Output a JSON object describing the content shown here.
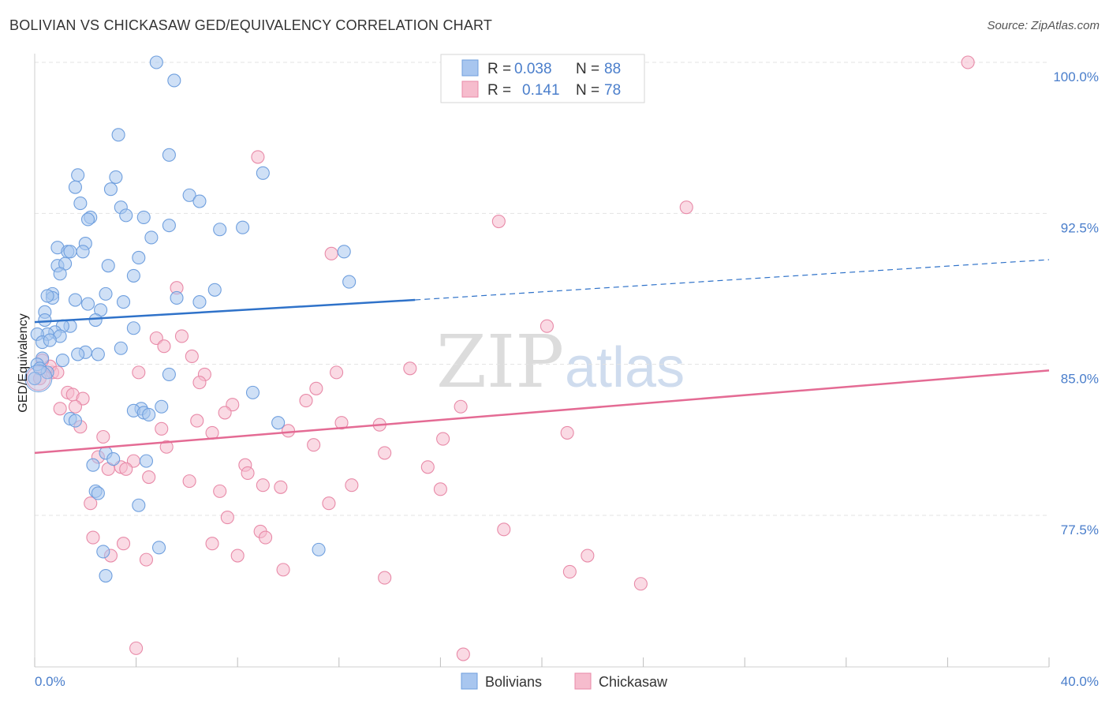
{
  "title": "BOLIVIAN VS CHICKASAW GED/EQUIVALENCY CORRELATION CHART",
  "source": "Source: ZipAtlas.com",
  "watermark": {
    "zip": "ZIP",
    "atlas": "atlas"
  },
  "colors": {
    "blue_fill": "#a8c6ef",
    "blue_stroke": "#6f9fde",
    "blue_line": "#2f72c9",
    "pink_fill": "#f6bccd",
    "pink_stroke": "#e88aa8",
    "pink_line": "#e46b94",
    "tick_text": "#4a7ecb",
    "grid": "#e3e3e3"
  },
  "legend_top": {
    "rows": [
      {
        "r_label": "R =",
        "r_value": "0.038",
        "n_label": "N =",
        "n_value": "88"
      },
      {
        "r_label": "R =",
        "r_value": "0.141",
        "n_label": "N =",
        "n_value": "78"
      }
    ]
  },
  "chart_data": {
    "type": "scatter",
    "title": "BOLIVIAN VS CHICKASAW GED/EQUIVALENCY CORRELATION CHART",
    "xlabel": "",
    "ylabel": "GED/Equivalency",
    "xlim": [
      0,
      40
    ],
    "ylim": [
      70.8,
      100.7
    ],
    "x_tick_labels": [
      "0.0%",
      "40.0%"
    ],
    "y_ticks": [
      77.5,
      85.0,
      92.5,
      100.0
    ],
    "y_tick_labels": [
      "77.5%",
      "85.0%",
      "92.5%",
      "100.0%"
    ],
    "grid": "horizontal dashed",
    "legend_placement": "top-center and bottom-center",
    "series": [
      {
        "name": "Bolivians",
        "r": 0.038,
        "n": 88,
        "trend": {
          "x": [
            0,
            15
          ],
          "y": [
            87.1,
            88.2
          ],
          "dashed_extension_to": [
            40,
            90.2
          ]
        },
        "points": [
          [
            4.8,
            100.0
          ],
          [
            5.5,
            99.1
          ],
          [
            3.3,
            96.4
          ],
          [
            5.3,
            95.4
          ],
          [
            1.7,
            94.4
          ],
          [
            3.2,
            94.3
          ],
          [
            9.0,
            94.5
          ],
          [
            1.6,
            93.8
          ],
          [
            3.0,
            93.7
          ],
          [
            6.1,
            93.4
          ],
          [
            6.5,
            93.1
          ],
          [
            1.8,
            93.0
          ],
          [
            3.4,
            92.8
          ],
          [
            2.2,
            92.3
          ],
          [
            3.6,
            92.4
          ],
          [
            4.3,
            92.3
          ],
          [
            2.1,
            92.2
          ],
          [
            7.3,
            91.7
          ],
          [
            8.2,
            91.8
          ],
          [
            5.3,
            91.9
          ],
          [
            4.6,
            91.3
          ],
          [
            2.0,
            91.0
          ],
          [
            0.9,
            90.8
          ],
          [
            1.3,
            90.6
          ],
          [
            1.4,
            90.6
          ],
          [
            1.9,
            90.6
          ],
          [
            4.1,
            90.3
          ],
          [
            12.2,
            90.6
          ],
          [
            2.9,
            89.9
          ],
          [
            0.9,
            89.9
          ],
          [
            1.2,
            90.0
          ],
          [
            1.0,
            89.5
          ],
          [
            3.9,
            89.4
          ],
          [
            12.4,
            89.1
          ],
          [
            7.1,
            88.7
          ],
          [
            2.8,
            88.5
          ],
          [
            0.7,
            88.5
          ],
          [
            0.7,
            88.3
          ],
          [
            0.5,
            88.4
          ],
          [
            1.6,
            88.2
          ],
          [
            5.6,
            88.3
          ],
          [
            6.5,
            88.1
          ],
          [
            3.5,
            88.1
          ],
          [
            2.1,
            88.0
          ],
          [
            2.6,
            87.7
          ],
          [
            0.4,
            87.6
          ],
          [
            0.4,
            87.2
          ],
          [
            2.4,
            87.2
          ],
          [
            1.4,
            86.9
          ],
          [
            1.1,
            86.9
          ],
          [
            3.9,
            86.8
          ],
          [
            0.8,
            86.6
          ],
          [
            0.5,
            86.5
          ],
          [
            1.0,
            86.4
          ],
          [
            0.1,
            86.5
          ],
          [
            0.3,
            86.1
          ],
          [
            0.6,
            86.2
          ],
          [
            3.4,
            85.8
          ],
          [
            2.0,
            85.6
          ],
          [
            2.5,
            85.5
          ],
          [
            1.7,
            85.5
          ],
          [
            1.1,
            85.2
          ],
          [
            0.3,
            85.3
          ],
          [
            0.1,
            85.0
          ],
          [
            0.5,
            84.6
          ],
          [
            5.3,
            84.5
          ],
          [
            8.6,
            83.6
          ],
          [
            5.0,
            82.9
          ],
          [
            4.2,
            82.8
          ],
          [
            3.9,
            82.7
          ],
          [
            4.3,
            82.6
          ],
          [
            4.5,
            82.5
          ],
          [
            1.4,
            82.3
          ],
          [
            1.6,
            82.2
          ],
          [
            9.6,
            82.1
          ],
          [
            2.8,
            80.6
          ],
          [
            3.1,
            80.3
          ],
          [
            4.4,
            80.2
          ],
          [
            2.3,
            80.0
          ],
          [
            2.4,
            78.7
          ],
          [
            2.5,
            78.6
          ],
          [
            4.1,
            78.0
          ],
          [
            4.9,
            75.9
          ],
          [
            11.2,
            75.8
          ],
          [
            2.7,
            75.7
          ],
          [
            2.8,
            74.5
          ],
          [
            0.2,
            84.8
          ],
          [
            0.0,
            84.3
          ]
        ]
      },
      {
        "name": "Chickasaw",
        "r": 0.141,
        "n": 78,
        "trend": {
          "x": [
            0,
            40
          ],
          "y": [
            80.6,
            84.7
          ]
        },
        "points": [
          [
            36.8,
            100.0
          ],
          [
            8.8,
            95.3
          ],
          [
            25.7,
            92.8
          ],
          [
            18.3,
            92.1
          ],
          [
            11.7,
            90.5
          ],
          [
            5.6,
            88.8
          ],
          [
            20.2,
            86.9
          ],
          [
            5.8,
            86.4
          ],
          [
            4.8,
            86.3
          ],
          [
            5.1,
            85.9
          ],
          [
            6.2,
            85.4
          ],
          [
            14.8,
            84.8
          ],
          [
            11.9,
            84.6
          ],
          [
            6.7,
            84.5
          ],
          [
            4.1,
            84.6
          ],
          [
            0.7,
            84.6
          ],
          [
            6.5,
            84.1
          ],
          [
            11.1,
            83.8
          ],
          [
            1.3,
            83.6
          ],
          [
            1.5,
            83.5
          ],
          [
            1.9,
            83.3
          ],
          [
            10.7,
            83.2
          ],
          [
            7.8,
            83.0
          ],
          [
            16.8,
            82.9
          ],
          [
            1.6,
            82.9
          ],
          [
            1.0,
            82.8
          ],
          [
            7.5,
            82.6
          ],
          [
            6.4,
            82.2
          ],
          [
            12.1,
            82.1
          ],
          [
            13.6,
            82.0
          ],
          [
            1.8,
            81.9
          ],
          [
            5.0,
            81.8
          ],
          [
            7.0,
            81.6
          ],
          [
            10.0,
            81.7
          ],
          [
            21.0,
            81.6
          ],
          [
            16.1,
            81.3
          ],
          [
            2.7,
            81.4
          ],
          [
            5.2,
            80.9
          ],
          [
            11.0,
            81.0
          ],
          [
            13.8,
            80.6
          ],
          [
            2.5,
            80.4
          ],
          [
            3.9,
            80.2
          ],
          [
            8.3,
            80.0
          ],
          [
            15.5,
            79.9
          ],
          [
            3.4,
            79.9
          ],
          [
            2.9,
            79.8
          ],
          [
            3.6,
            79.8
          ],
          [
            8.4,
            79.6
          ],
          [
            4.5,
            79.4
          ],
          [
            6.1,
            79.2
          ],
          [
            9.0,
            79.0
          ],
          [
            9.7,
            78.9
          ],
          [
            12.5,
            79.0
          ],
          [
            16.0,
            78.8
          ],
          [
            7.3,
            78.7
          ],
          [
            2.2,
            78.1
          ],
          [
            11.6,
            78.1
          ],
          [
            7.6,
            77.4
          ],
          [
            18.5,
            76.8
          ],
          [
            8.9,
            76.7
          ],
          [
            9.1,
            76.4
          ],
          [
            2.3,
            76.4
          ],
          [
            3.5,
            76.1
          ],
          [
            7.0,
            76.1
          ],
          [
            3.0,
            75.5
          ],
          [
            4.4,
            75.3
          ],
          [
            8.0,
            75.5
          ],
          [
            21.8,
            75.5
          ],
          [
            9.8,
            74.8
          ],
          [
            21.1,
            74.7
          ],
          [
            13.8,
            74.4
          ],
          [
            23.9,
            74.1
          ],
          [
            4.0,
            70.9
          ],
          [
            16.9,
            70.6
          ],
          [
            0.2,
            84.3
          ],
          [
            0.6,
            84.9
          ],
          [
            0.3,
            85.2
          ],
          [
            0.9,
            84.6
          ]
        ]
      }
    ]
  },
  "bottom_legend": {
    "items": [
      "Bolivians",
      "Chickasaw"
    ]
  }
}
